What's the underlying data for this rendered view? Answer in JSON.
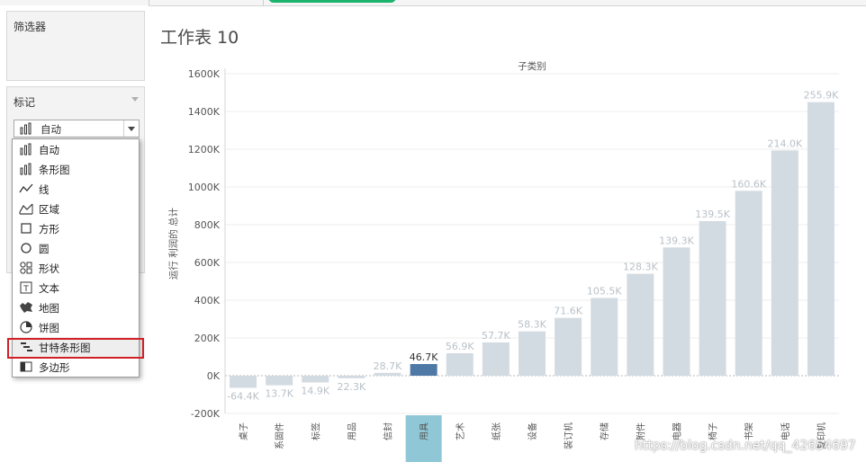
{
  "left_panel": {
    "filters_title": "筛选器",
    "marks_title": "标记",
    "mark_type_selected": "自动",
    "mark_menu": [
      {
        "label": "自动",
        "icon": "bar-chart-icon"
      },
      {
        "label": "条形图",
        "icon": "bar-chart-icon"
      },
      {
        "label": "线",
        "icon": "line-chart-icon"
      },
      {
        "label": "区域",
        "icon": "area-chart-icon"
      },
      {
        "label": "方形",
        "icon": "square-icon"
      },
      {
        "label": "圆",
        "icon": "circle-icon"
      },
      {
        "label": "形状",
        "icon": "shapes-icon"
      },
      {
        "label": "文本",
        "icon": "text-icon"
      },
      {
        "label": "地图",
        "icon": "map-icon"
      },
      {
        "label": "饼图",
        "icon": "pie-chart-icon"
      },
      {
        "label": "甘特条形图",
        "icon": "gantt-chart-icon"
      },
      {
        "label": "多边形",
        "icon": "polygon-icon"
      }
    ],
    "highlighted_item": "甘特条形图"
  },
  "worksheet": {
    "title": "工作表 10"
  },
  "chart_data": {
    "type": "bar",
    "title": "子类别",
    "xlabel": "",
    "ylabel": "运行 利润的 总计",
    "categories": [
      "桌子",
      "系固件",
      "标签",
      "用品",
      "信封",
      "用具",
      "艺术",
      "纸张",
      "设备",
      "装订机",
      "存储",
      "附件",
      "电器",
      "椅子",
      "书架",
      "电话",
      "复印机"
    ],
    "values": [
      -64400,
      13700,
      14900,
      22300,
      28700,
      46700,
      56900,
      57700,
      58300,
      71600,
      105500,
      128300,
      139300,
      139500,
      160600,
      214000,
      255900
    ],
    "bar_heights": [
      -64400,
      -50700,
      -35800,
      -13500,
      15200,
      61900,
      118800,
      176500,
      234800,
      306400,
      411900,
      540200,
      679500,
      819000,
      979600,
      1193600,
      1449500
    ],
    "data_labels": [
      "-64.4K",
      "13.7K",
      "14.9K",
      "22.3K",
      "28.7K",
      "46.7K",
      "56.9K",
      "57.7K",
      "58.3K",
      "71.6K",
      "105.5K",
      "128.3K",
      "139.3K",
      "139.5K",
      "160.6K",
      "214.0K",
      "255.9K"
    ],
    "y_ticks": [
      "1600K",
      "1400K",
      "1200K",
      "1000K",
      "800K",
      "600K",
      "400K",
      "200K",
      "0K",
      "-200K"
    ],
    "ylim": [
      -200000,
      1600000
    ],
    "highlighted_category": "用具",
    "colors": {
      "bar": "#d3dbe2",
      "highlight_bar": "#4e79a7",
      "label": "#b9c1c8",
      "highlight_label": "#333333",
      "category_highlight_bg": "#8fc7d6"
    },
    "grid": true
  },
  "watermark": "https://blog.csdn.net/qq_42654697"
}
